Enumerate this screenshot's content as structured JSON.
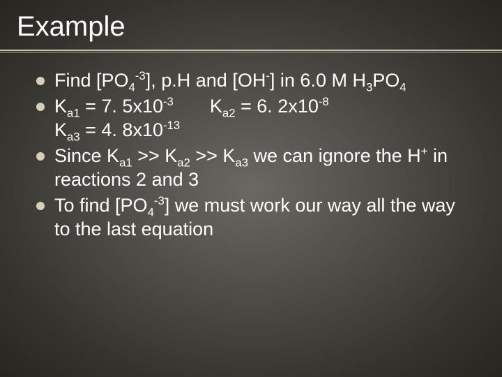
{
  "slide": {
    "title": "Example",
    "title_fontsize": 40,
    "title_color": "#ffffff",
    "rule_top_color": "#c8c1b0",
    "rule_bottom_color": "#6f6b5e",
    "background_gradient": [
      "#6a6863",
      "#4e4c47",
      "#34332e",
      "#26251f"
    ],
    "bullet_color": "#d6ceb9",
    "text_color": "#ffffff",
    "body_fontsize": 27,
    "bullets": [
      {
        "html": "Find [PO<sub>4</sub><sup>-3</sup>], p.H and [OH<sup>-</sup>] in 6.0 M H<sub>3</sub>PO<sub>4</sub>"
      },
      {
        "html": "K<sub>a1</sub> = 7. 5x10<sup>-3</sup><span class=\"gap\"></span>K<sub>a2</sub> = 6. 2x10<sup>-8</sup><br>K<sub>a3</sub> = 4. 8x10<sup>-13</sup>"
      },
      {
        "html": "Since K<sub>a1</sub> >> K<sub>a2</sub> >> K<sub>a3</sub> we can ignore the H<sup>+</sup> in reactions 2 and 3"
      },
      {
        "html": "To find [PO<sub>4</sub><sup>-3</sup>] we must work our way all the way to the last equation"
      }
    ]
  }
}
